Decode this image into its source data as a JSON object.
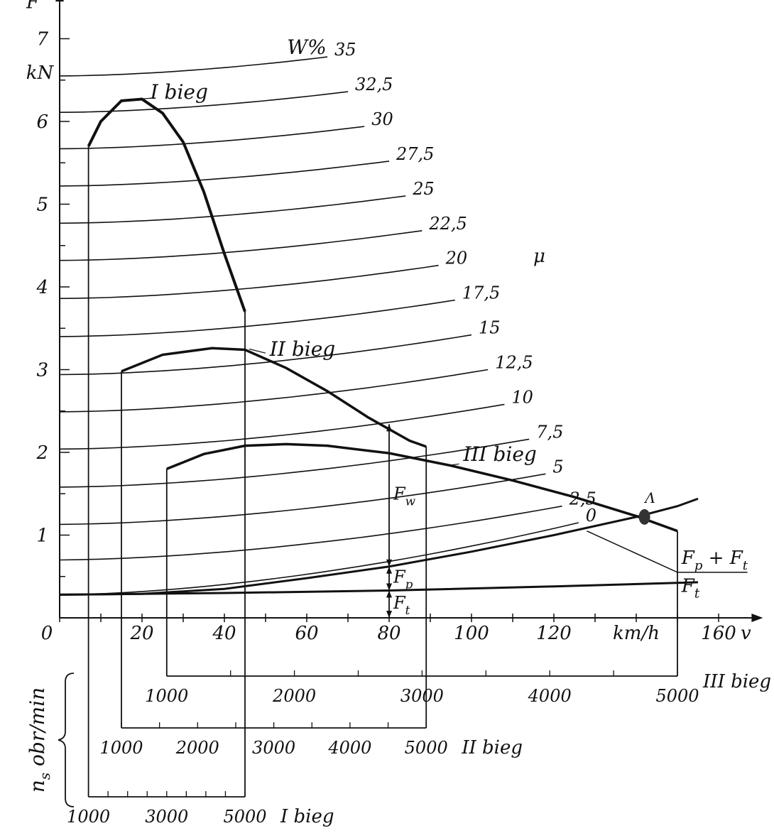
{
  "chart_data": {
    "type": "line",
    "title": "",
    "x_axis": {
      "symbol": "v",
      "unit": "km/h",
      "range": [
        0,
        160
      ],
      "ticks": [
        0,
        10,
        20,
        30,
        40,
        50,
        60,
        70,
        80,
        90,
        100,
        110,
        120,
        130,
        140,
        150,
        160
      ],
      "tick_labels": [
        "0",
        "20",
        "40",
        "60",
        "80",
        "100",
        "120",
        "160"
      ]
    },
    "y_axis": {
      "symbol": "F",
      "unit": "kN",
      "range": [
        0,
        7
      ],
      "ticks": [
        0,
        0.5,
        1,
        1.5,
        2,
        2.5,
        3,
        3.5,
        4,
        4.5,
        5,
        5.5,
        6,
        6.5,
        7
      ],
      "tick_labels": [
        "1",
        "2",
        "3",
        "4",
        "5",
        "6",
        "7"
      ]
    },
    "grade_curves": {
      "header": "W%",
      "symbol": "μ",
      "x_end": [
        65,
        70,
        74,
        80,
        84,
        88,
        92,
        96,
        100,
        104,
        108,
        114,
        118,
        122,
        126
      ],
      "curves": [
        {
          "label": "35",
          "F_start": 6.55,
          "F_end": 6.78
        },
        {
          "label": "32,5",
          "F_start": 6.11,
          "F_end": 6.36
        },
        {
          "label": "30",
          "F_start": 5.67,
          "F_end": 5.94
        },
        {
          "label": "27,5",
          "F_start": 5.22,
          "F_end": 5.52
        },
        {
          "label": "25",
          "F_start": 4.77,
          "F_end": 5.1
        },
        {
          "label": "22,5",
          "F_start": 4.32,
          "F_end": 4.68
        },
        {
          "label": "20",
          "F_start": 3.86,
          "F_end": 4.26
        },
        {
          "label": "17,5",
          "F_start": 3.4,
          "F_end": 3.84
        },
        {
          "label": "15",
          "F_start": 2.94,
          "F_end": 3.42
        },
        {
          "label": "12,5",
          "F_start": 2.49,
          "F_end": 3.0
        },
        {
          "label": "10",
          "F_start": 2.04,
          "F_end": 2.58
        },
        {
          "label": "7,5",
          "F_start": 1.58,
          "F_end": 2.16
        },
        {
          "label": "5",
          "F_start": 1.13,
          "F_end": 1.74
        },
        {
          "label": "2,5",
          "F_start": 0.7,
          "F_end": 1.35
        },
        {
          "label": "0",
          "F_start": 0.28,
          "F_end": 1.15
        }
      ]
    },
    "series": [
      {
        "name": "I bieg",
        "label": "I bieg",
        "x": [
          7,
          10,
          15,
          20,
          25,
          30,
          35,
          40,
          45
        ],
        "y": [
          5.7,
          6.0,
          6.25,
          6.27,
          6.1,
          5.75,
          5.15,
          4.4,
          3.7
        ],
        "rpm_axis": {
          "label": "I bieg",
          "rpm_range": [
            1000,
            5000
          ],
          "ticks": [
            "1000",
            "3000",
            "5000"
          ]
        }
      },
      {
        "name": "II bieg",
        "label": "II bieg",
        "x": [
          15,
          25,
          37,
          45,
          55,
          65,
          75,
          85,
          89
        ],
        "y": [
          2.98,
          3.18,
          3.26,
          3.24,
          3.02,
          2.74,
          2.42,
          2.14,
          2.07
        ],
        "rpm_axis": {
          "label": "II bieg",
          "rpm_range": [
            1000,
            5000
          ],
          "ticks": [
            "1000",
            "2000",
            "3000",
            "4000",
            "5000"
          ]
        }
      },
      {
        "name": "III bieg",
        "label": "III bieg",
        "x": [
          26,
          35,
          45,
          55,
          65,
          80,
          95,
          110,
          125,
          140,
          150
        ],
        "y": [
          1.8,
          1.98,
          2.08,
          2.1,
          2.08,
          1.99,
          1.84,
          1.66,
          1.46,
          1.23,
          1.05
        ],
        "rpm_axis": {
          "label": "III bieg",
          "rpm_range": [
            1000,
            5000
          ],
          "ticks": [
            "1000",
            "2000",
            "3000",
            "4000",
            "5000"
          ]
        }
      },
      {
        "name": "Fp + Ft",
        "label": "F_p + F_t",
        "x": [
          0,
          20,
          40,
          60,
          80,
          100,
          120,
          140,
          150,
          155
        ],
        "y": [
          0.28,
          0.29,
          0.35,
          0.48,
          0.62,
          0.8,
          1.0,
          1.22,
          1.35,
          1.44
        ]
      },
      {
        "name": "Ft",
        "label": "F_t",
        "x": [
          0,
          40,
          80,
          120,
          155
        ],
        "y": [
          0.28,
          0.3,
          0.33,
          0.38,
          0.43
        ]
      }
    ],
    "annotations": [
      {
        "label": "F_w",
        "x": 80,
        "from": 0.62,
        "to": 2.34
      },
      {
        "label": "F_p",
        "x": 80,
        "from": 0.33,
        "to": 0.62
      },
      {
        "label": "F_t",
        "x": 80,
        "from": 0,
        "to": 0.33
      },
      {
        "label": "A",
        "x": 142,
        "y": 1.22
      }
    ],
    "rpm_axis_label": "n_s obr/min"
  }
}
